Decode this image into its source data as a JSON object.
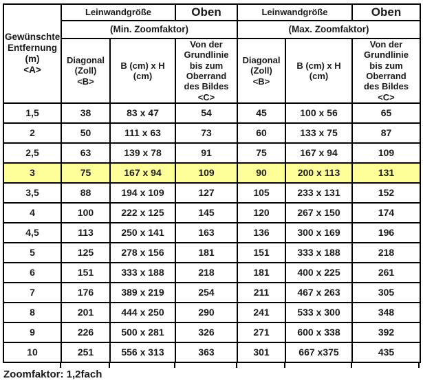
{
  "table": {
    "highlight_color": "#ffff99",
    "highlighted_row_index": 3,
    "header": {
      "distance_label": "Gewünschte\nEntfernung\n(m)\n<A>",
      "min_group": {
        "screen_size_label": "Leinwandgröße",
        "top_label": "Oben",
        "zoom_label": "(Min. Zoomfaktor)",
        "diagonal_label": "Diagonal\n(Zoll)\n<B>",
        "width_height_label": "B (cm) x H\n(cm)",
        "baseline_label": "Von der\nGrundlinie\nbis zum\nOberrand\ndes Bildes\n<C>"
      },
      "max_group": {
        "screen_size_label": "Leinwandgröße",
        "top_label": "Oben",
        "zoom_label": "(Max. Zoomfaktor)",
        "diagonal_label": "Diagonal\n(Zoll)\n<B>",
        "width_height_label": "B (cm) x H (cm)",
        "baseline_label": "Von der\nGrundlinie\nbis zum\nOberrand\ndes Bildes\n<C>"
      }
    },
    "rows": [
      [
        "1,5",
        "38",
        "83 x 47",
        "54",
        "45",
        "100 x 56",
        "65"
      ],
      [
        "2",
        "50",
        "111 x 63",
        "73",
        "60",
        "133 x 75",
        "87"
      ],
      [
        "2,5",
        "63",
        "139 x 78",
        "91",
        "75",
        "167 x 94",
        "109"
      ],
      [
        "3",
        "75",
        "167 x 94",
        "109",
        "90",
        "200 x 113",
        "131"
      ],
      [
        "3,5",
        "88",
        "194 x 109",
        "127",
        "105",
        "233 x 131",
        "152"
      ],
      [
        "4",
        "100",
        "222 x 125",
        "145",
        "120",
        "267 x 150",
        "174"
      ],
      [
        "4,5",
        "113",
        "250 x 141",
        "163",
        "136",
        "300 x 169",
        "196"
      ],
      [
        "5",
        "125",
        "278 x 156",
        "181",
        "151",
        "333 x 188",
        "218"
      ],
      [
        "6",
        "151",
        "333 x 188",
        "218",
        "181",
        "400 x 225",
        "261"
      ],
      [
        "7",
        "176",
        "389 x 219",
        "254",
        "211",
        "467 x 263",
        "305"
      ],
      [
        "8",
        "201",
        "444 x 250",
        "290",
        "241",
        "533 x 300",
        "348"
      ],
      [
        "9",
        "226",
        "500 x 281",
        "326",
        "271",
        "600 x 338",
        "392"
      ],
      [
        "10",
        "251",
        "556 x 313",
        "363",
        "301",
        "667 x375",
        "435"
      ]
    ]
  },
  "footer": {
    "note": "Zoomfaktor: 1,2fach"
  }
}
